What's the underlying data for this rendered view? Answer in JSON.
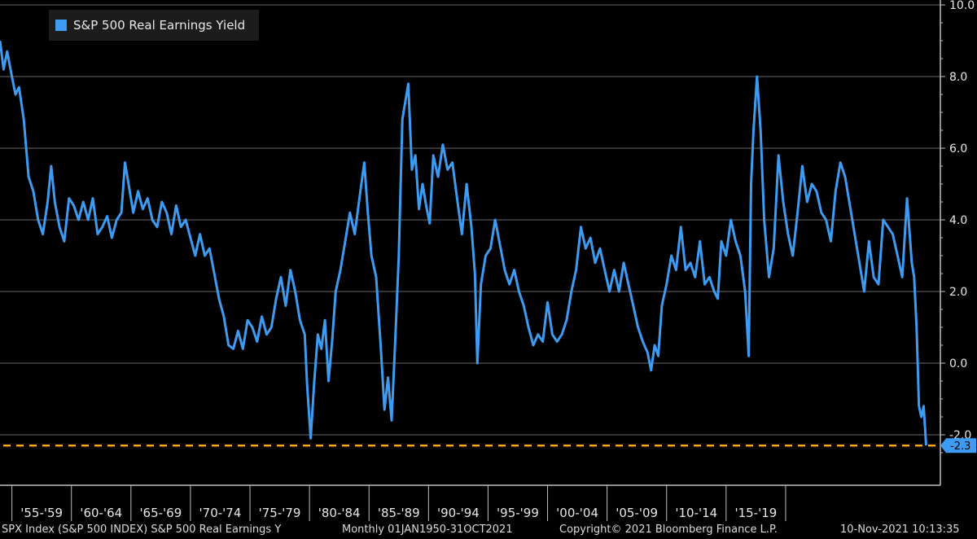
{
  "chart_data": {
    "type": "line",
    "legend": {
      "label": "S&P 500 Real Earnings Yield",
      "position": "top-left"
    },
    "series": [
      {
        "name": "S&P 500 Real Earnings Yield",
        "color": "#3d9bf2",
        "points": [
          [
            1954.0,
            9.0
          ],
          [
            1954.3,
            8.2
          ],
          [
            1954.6,
            8.7
          ],
          [
            1955.0,
            8.0
          ],
          [
            1955.3,
            7.5
          ],
          [
            1955.6,
            7.7
          ],
          [
            1956.0,
            6.8
          ],
          [
            1956.4,
            5.2
          ],
          [
            1956.8,
            4.8
          ],
          [
            1957.2,
            4.0
          ],
          [
            1957.6,
            3.6
          ],
          [
            1958.0,
            4.5
          ],
          [
            1958.3,
            5.5
          ],
          [
            1958.6,
            4.5
          ],
          [
            1959.0,
            3.8
          ],
          [
            1959.4,
            3.4
          ],
          [
            1959.8,
            4.6
          ],
          [
            1960.2,
            4.4
          ],
          [
            1960.6,
            4.0
          ],
          [
            1961.0,
            4.5
          ],
          [
            1961.4,
            4.0
          ],
          [
            1961.8,
            4.6
          ],
          [
            1962.2,
            3.6
          ],
          [
            1962.6,
            3.8
          ],
          [
            1963.0,
            4.1
          ],
          [
            1963.4,
            3.5
          ],
          [
            1963.8,
            4.0
          ],
          [
            1964.2,
            4.2
          ],
          [
            1964.5,
            5.6
          ],
          [
            1964.8,
            5.0
          ],
          [
            1965.2,
            4.2
          ],
          [
            1965.6,
            4.8
          ],
          [
            1966.0,
            4.3
          ],
          [
            1966.4,
            4.6
          ],
          [
            1966.8,
            4.0
          ],
          [
            1967.2,
            3.8
          ],
          [
            1967.6,
            4.5
          ],
          [
            1968.0,
            4.2
          ],
          [
            1968.4,
            3.6
          ],
          [
            1968.8,
            4.4
          ],
          [
            1969.2,
            3.8
          ],
          [
            1969.6,
            4.0
          ],
          [
            1970.0,
            3.5
          ],
          [
            1970.4,
            3.0
          ],
          [
            1970.8,
            3.6
          ],
          [
            1971.2,
            3.0
          ],
          [
            1971.6,
            3.2
          ],
          [
            1972.0,
            2.5
          ],
          [
            1972.4,
            1.8
          ],
          [
            1972.8,
            1.3
          ],
          [
            1973.2,
            0.5
          ],
          [
            1973.6,
            0.4
          ],
          [
            1974.0,
            0.9
          ],
          [
            1974.4,
            0.4
          ],
          [
            1974.8,
            1.2
          ],
          [
            1975.2,
            1.0
          ],
          [
            1975.6,
            0.6
          ],
          [
            1976.0,
            1.3
          ],
          [
            1976.4,
            0.8
          ],
          [
            1976.8,
            1.0
          ],
          [
            1977.2,
            1.8
          ],
          [
            1977.6,
            2.4
          ],
          [
            1978.0,
            1.6
          ],
          [
            1978.4,
            2.6
          ],
          [
            1978.8,
            2.0
          ],
          [
            1979.2,
            1.2
          ],
          [
            1979.6,
            0.8
          ],
          [
            1979.8,
            -0.6
          ],
          [
            1980.1,
            -2.1
          ],
          [
            1980.4,
            -0.5
          ],
          [
            1980.7,
            0.8
          ],
          [
            1981.0,
            0.4
          ],
          [
            1981.3,
            1.2
          ],
          [
            1981.6,
            -0.5
          ],
          [
            1981.9,
            0.6
          ],
          [
            1982.2,
            2.0
          ],
          [
            1982.6,
            2.6
          ],
          [
            1983.0,
            3.4
          ],
          [
            1983.4,
            4.2
          ],
          [
            1983.8,
            3.6
          ],
          [
            1984.2,
            4.6
          ],
          [
            1984.6,
            5.6
          ],
          [
            1984.9,
            4.2
          ],
          [
            1985.2,
            3.0
          ],
          [
            1985.6,
            2.4
          ],
          [
            1986.0,
            0.4
          ],
          [
            1986.3,
            -1.3
          ],
          [
            1986.6,
            -0.4
          ],
          [
            1986.9,
            -1.6
          ],
          [
            1987.2,
            0.6
          ],
          [
            1987.5,
            3.0
          ],
          [
            1987.8,
            6.8
          ],
          [
            1988.0,
            7.2
          ],
          [
            1988.3,
            7.8
          ],
          [
            1988.6,
            5.4
          ],
          [
            1988.9,
            5.8
          ],
          [
            1989.2,
            4.3
          ],
          [
            1989.5,
            5.0
          ],
          [
            1989.8,
            4.4
          ],
          [
            1990.1,
            3.9
          ],
          [
            1990.4,
            5.8
          ],
          [
            1990.8,
            5.2
          ],
          [
            1991.2,
            6.1
          ],
          [
            1991.6,
            5.4
          ],
          [
            1992.0,
            5.6
          ],
          [
            1992.4,
            4.6
          ],
          [
            1992.8,
            3.6
          ],
          [
            1993.2,
            5.0
          ],
          [
            1993.6,
            3.8
          ],
          [
            1993.9,
            2.5
          ],
          [
            1994.1,
            0.0
          ],
          [
            1994.4,
            2.2
          ],
          [
            1994.8,
            3.0
          ],
          [
            1995.2,
            3.2
          ],
          [
            1995.6,
            4.0
          ],
          [
            1996.0,
            3.3
          ],
          [
            1996.4,
            2.6
          ],
          [
            1996.8,
            2.2
          ],
          [
            1997.2,
            2.6
          ],
          [
            1997.6,
            2.0
          ],
          [
            1998.0,
            1.6
          ],
          [
            1998.4,
            1.0
          ],
          [
            1998.8,
            0.5
          ],
          [
            1999.2,
            0.8
          ],
          [
            1999.6,
            0.6
          ],
          [
            2000.0,
            1.7
          ],
          [
            2000.4,
            0.8
          ],
          [
            2000.8,
            0.6
          ],
          [
            2001.2,
            0.8
          ],
          [
            2001.6,
            1.2
          ],
          [
            2002.0,
            2.0
          ],
          [
            2002.4,
            2.6
          ],
          [
            2002.8,
            3.8
          ],
          [
            2003.2,
            3.2
          ],
          [
            2003.6,
            3.5
          ],
          [
            2004.0,
            2.8
          ],
          [
            2004.4,
            3.2
          ],
          [
            2004.8,
            2.6
          ],
          [
            2005.2,
            2.0
          ],
          [
            2005.6,
            2.6
          ],
          [
            2006.0,
            2.0
          ],
          [
            2006.4,
            2.8
          ],
          [
            2006.8,
            2.2
          ],
          [
            2007.2,
            1.6
          ],
          [
            2007.6,
            1.0
          ],
          [
            2008.0,
            0.6
          ],
          [
            2008.4,
            0.3
          ],
          [
            2008.7,
            -0.2
          ],
          [
            2009.0,
            0.5
          ],
          [
            2009.3,
            0.2
          ],
          [
            2009.6,
            1.6
          ],
          [
            2010.0,
            2.2
          ],
          [
            2010.4,
            3.0
          ],
          [
            2010.8,
            2.6
          ],
          [
            2011.2,
            3.8
          ],
          [
            2011.6,
            2.6
          ],
          [
            2012.0,
            2.8
          ],
          [
            2012.4,
            2.4
          ],
          [
            2012.8,
            3.4
          ],
          [
            2013.2,
            2.2
          ],
          [
            2013.6,
            2.4
          ],
          [
            2014.0,
            2.0
          ],
          [
            2014.3,
            1.8
          ],
          [
            2014.6,
            3.4
          ],
          [
            2015.0,
            3.0
          ],
          [
            2015.4,
            4.0
          ],
          [
            2015.8,
            3.4
          ],
          [
            2016.2,
            3.0
          ],
          [
            2016.6,
            2.0
          ],
          [
            2016.9,
            0.2
          ],
          [
            2017.1,
            5.0
          ],
          [
            2017.3,
            6.5
          ],
          [
            2017.6,
            8.0
          ],
          [
            2017.9,
            6.5
          ],
          [
            2018.2,
            4.0
          ],
          [
            2018.6,
            2.4
          ],
          [
            2019.0,
            3.2
          ],
          [
            2019.4,
            5.8
          ],
          [
            2019.8,
            4.5
          ],
          [
            2020.2,
            3.6
          ],
          [
            2020.6,
            3.0
          ],
          [
            2021.0,
            4.2
          ],
          [
            2021.4,
            5.5
          ],
          [
            2021.8,
            4.5
          ],
          [
            2022.2,
            5.0
          ],
          [
            2022.6,
            4.8
          ],
          [
            2023.0,
            4.2
          ],
          [
            2023.4,
            4.0
          ],
          [
            2023.8,
            3.4
          ],
          [
            2024.2,
            4.8
          ],
          [
            2024.6,
            5.6
          ],
          [
            2025.0,
            5.2
          ],
          [
            2025.4,
            4.4
          ],
          [
            2025.8,
            3.6
          ],
          [
            2026.2,
            2.8
          ],
          [
            2026.6,
            2.0
          ],
          [
            2027.0,
            3.4
          ],
          [
            2027.4,
            2.4
          ],
          [
            2027.8,
            2.2
          ],
          [
            2028.2,
            4.0
          ],
          [
            2028.6,
            3.8
          ],
          [
            2029.0,
            3.6
          ],
          [
            2029.4,
            3.0
          ],
          [
            2029.8,
            2.4
          ],
          [
            2030.2,
            4.6
          ],
          [
            2030.6,
            2.8
          ],
          [
            2030.8,
            2.4
          ],
          [
            2031.0,
            1.0
          ],
          [
            2031.2,
            -1.2
          ],
          [
            2031.4,
            -1.5
          ],
          [
            2031.6,
            -1.2
          ],
          [
            2031.8,
            -2.3
          ]
        ]
      }
    ],
    "x_tick_labels": [
      "'55-'59",
      "'60-'64",
      "'65-'69",
      "'70-'74",
      "'75-'79",
      "'80-'84",
      "'85-'89",
      "'90-'94",
      "'95-'99",
      "'00-'04",
      "'05-'09",
      "'10-'14",
      "'15-'19"
    ],
    "x_range": [
      1954,
      2033
    ],
    "y_ticks": [
      10.0,
      8.0,
      6.0,
      4.0,
      2.0,
      0.0,
      -2.0
    ],
    "ylim": [
      -2.8,
      10.0
    ],
    "grid": true,
    "last_value": -2.3,
    "last_value_label": "-2.3",
    "reference_line": {
      "value": -2.3,
      "color": "#f5a623",
      "style": "dashed"
    },
    "colors": {
      "line": "#3d9bf2",
      "axis": "#bfbfbf",
      "grid": "#6a6a6a",
      "background": "#000000"
    }
  },
  "footer": {
    "security": "SPX Index (S&P 500 INDEX) S&P 500 Real Earnings Y",
    "period": "Monthly 01JAN1950-31OCT2021",
    "copyright": "Copyright© 2021 Bloomberg Finance L.P.",
    "timestamp": "10-Nov-2021 10:13:35"
  }
}
